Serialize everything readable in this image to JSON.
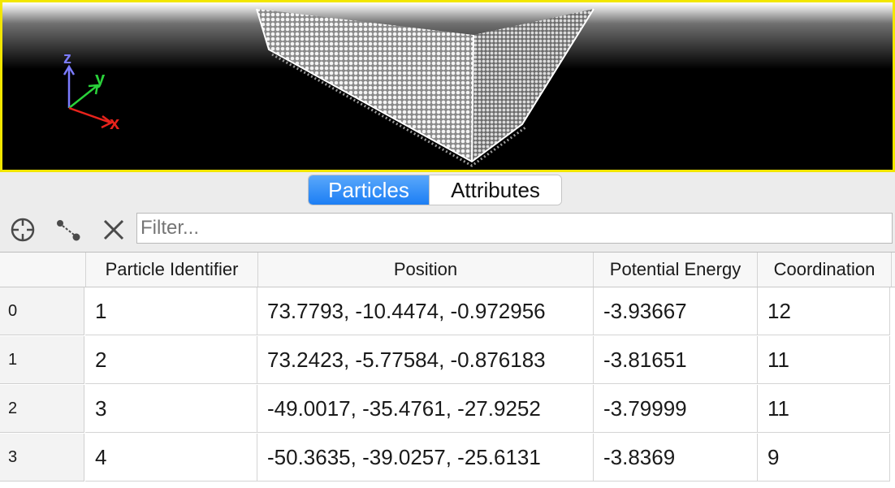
{
  "viewport": {
    "axes": {
      "x_label": "x",
      "y_label": "y",
      "z_label": "z",
      "x_color": "#e8231c",
      "y_color": "#2ad13a",
      "z_color": "#7b7bff"
    },
    "border_color": "#f2e600"
  },
  "tabs": [
    {
      "label": "Particles",
      "active": true
    },
    {
      "label": "Attributes",
      "active": false
    }
  ],
  "toolbar": {
    "icons": [
      "crosshair-icon",
      "distance-icon",
      "clear-icon"
    ],
    "filter_placeholder": "Filter..."
  },
  "table": {
    "columns": [
      "Particle Identifier",
      "Position",
      "Potential Energy",
      "Coordination"
    ],
    "rows": [
      {
        "index": "0",
        "id": "1",
        "position": "73.7793, -10.4474, -0.972956",
        "energy": "-3.93667",
        "coord": "12"
      },
      {
        "index": "1",
        "id": "2",
        "position": "73.2423, -5.77584, -0.876183",
        "energy": "-3.81651",
        "coord": "11"
      },
      {
        "index": "2",
        "id": "3",
        "position": "-49.0017, -35.4761, -27.9252",
        "energy": "-3.79999",
        "coord": "11"
      },
      {
        "index": "3",
        "id": "4",
        "position": "-50.3635, -39.0257, -25.6131",
        "energy": "-3.8369",
        "coord": "9"
      }
    ]
  }
}
